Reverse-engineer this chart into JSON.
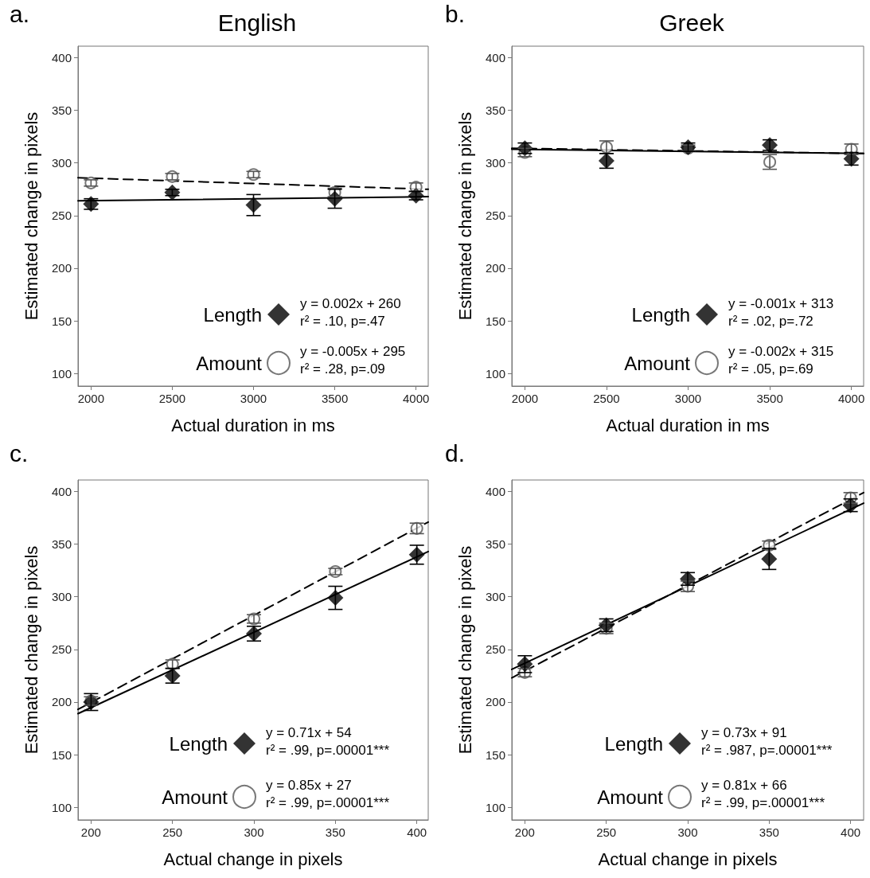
{
  "chart_data": [
    {
      "type": "scatter",
      "title": "English",
      "xlabel": "Actual duration in ms",
      "ylabel": "Estimated change in pixels",
      "x": [
        2000,
        2500,
        3000,
        3500,
        4000
      ],
      "xlim": [
        1920,
        4075
      ],
      "xticks": [
        2000,
        2500,
        3000,
        3500,
        4000
      ],
      "ylim": [
        88,
        411
      ],
      "yticks": [
        100,
        150,
        200,
        250,
        300,
        350,
        400
      ],
      "grid": false,
      "legend": "bottom right",
      "annotations": [
        "a.",
        "y = 0.002x + 260",
        "r² = .10, p=.47",
        "y = -0.005x + 295",
        "r² = .28, p=.09"
      ],
      "series": [
        {
          "name": "Length",
          "color": "#000000",
          "marker": "diamond",
          "values": [
            261,
            272,
            260,
            266,
            269
          ],
          "errors": [
            5,
            3,
            10,
            9,
            4
          ]
        },
        {
          "name": "Amount",
          "color": "#555555",
          "marker": "circle",
          "values": [
            281,
            287,
            289,
            272,
            277
          ],
          "errors": [
            3,
            3,
            3,
            4,
            4
          ]
        },
        {
          "type": "line",
          "color": "#000000",
          "line_style": "solid",
          "x": [
            1920,
            4075
          ],
          "values": [
            264,
            268
          ]
        },
        {
          "type": "line",
          "color": "#000000",
          "line_style": "dashed",
          "x": [
            1920,
            4075
          ],
          "values": [
            286,
            275
          ]
        }
      ]
    },
    {
      "type": "scatter",
      "title": "Greek",
      "xlabel": "Actual duration in ms",
      "ylabel": "Estimated change in pixels",
      "x": [
        2000,
        2500,
        3000,
        3500,
        4000
      ],
      "xlim": [
        1920,
        4075
      ],
      "xticks": [
        2000,
        2500,
        3000,
        3500,
        4000
      ],
      "ylim": [
        88,
        411
      ],
      "yticks": [
        100,
        150,
        200,
        250,
        300,
        350,
        400
      ],
      "grid": false,
      "legend": "bottom right",
      "annotations": [
        "b.",
        "y = -0.001x + 313",
        "r² = .02, p=.72",
        "y = -0.002x + 315",
        "r² = .05, p=.69"
      ],
      "series": [
        {
          "name": "Length",
          "color": "#000000",
          "marker": "diamond",
          "values": [
            314,
            302,
            315,
            317,
            304
          ],
          "errors": [
            5,
            7,
            4,
            5,
            6
          ]
        },
        {
          "name": "Amount",
          "color": "#555555",
          "marker": "circle",
          "values": [
            310,
            315,
            314,
            301,
            313
          ],
          "errors": [
            4,
            6,
            3,
            7,
            5
          ]
        },
        {
          "type": "line",
          "color": "#000000",
          "line_style": "solid",
          "x": [
            1920,
            4075
          ],
          "values": [
            313,
            309
          ]
        },
        {
          "type": "line",
          "color": "#000000",
          "line_style": "dashed",
          "x": [
            1920,
            4075
          ],
          "values": [
            314,
            309
          ]
        }
      ]
    },
    {
      "type": "scatter",
      "xlabel": "Actual change in pixels",
      "ylabel": "Estimated change in pixels",
      "x": [
        200,
        250,
        300,
        350,
        400
      ],
      "xlim": [
        192,
        407
      ],
      "xticks": [
        200,
        250,
        300,
        350,
        400
      ],
      "ylim": [
        88,
        411
      ],
      "yticks": [
        100,
        150,
        200,
        250,
        300,
        350,
        400
      ],
      "grid": false,
      "legend": "bottom",
      "annotations": [
        "c.",
        "y = 0.71x + 54",
        "r² = .99, p=.00001***",
        "y = 0.85x + 27",
        "r² = .99, p=.00001***"
      ],
      "series": [
        {
          "name": "Length",
          "color": "#000000",
          "marker": "diamond",
          "values": [
            200,
            225,
            265,
            299,
            340
          ],
          "errors": [
            8,
            7,
            7,
            11,
            9
          ]
        },
        {
          "name": "Amount",
          "color": "#555555",
          "marker": "circle",
          "values": [
            201,
            236,
            279,
            324,
            365
          ],
          "errors": [
            4,
            4,
            4,
            3,
            5
          ]
        },
        {
          "type": "line",
          "color": "#000000",
          "line_style": "solid",
          "x": [
            192,
            407
          ],
          "values": [
            189,
            343
          ]
        },
        {
          "type": "line",
          "color": "#000000",
          "line_style": "dashed",
          "x": [
            192,
            407
          ],
          "values": [
            193,
            371
          ]
        }
      ]
    },
    {
      "type": "scatter",
      "xlabel": "Actual change in pixels",
      "ylabel": "Estimated change in pixels",
      "x": [
        200,
        250,
        300,
        350,
        400
      ],
      "xlim": [
        192,
        408
      ],
      "xticks": [
        200,
        250,
        300,
        350,
        400
      ],
      "ylim": [
        88,
        411
      ],
      "yticks": [
        100,
        150,
        200,
        250,
        300,
        350,
        400
      ],
      "grid": false,
      "legend": "bottom",
      "annotations": [
        "d.",
        "y = 0.73x + 91",
        "r² = .987, p=.00001***",
        "y = 0.81x + 66",
        "r² = .99, p=.00001***"
      ],
      "series": [
        {
          "name": "Length",
          "color": "#000000",
          "marker": "diamond",
          "values": [
            236,
            273,
            317,
            336,
            387
          ],
          "errors": [
            8,
            6,
            6,
            10,
            6
          ]
        },
        {
          "name": "Amount",
          "color": "#555555",
          "marker": "circle",
          "values": [
            228,
            270,
            310,
            349,
            394
          ],
          "errors": [
            4,
            5,
            5,
            4,
            5
          ]
        },
        {
          "type": "line",
          "color": "#000000",
          "line_style": "solid",
          "x": [
            192,
            408
          ],
          "values": [
            231,
            389
          ]
        },
        {
          "type": "line",
          "color": "#000000",
          "line_style": "dashed",
          "x": [
            192,
            408
          ],
          "values": [
            223,
            399
          ]
        }
      ]
    }
  ]
}
